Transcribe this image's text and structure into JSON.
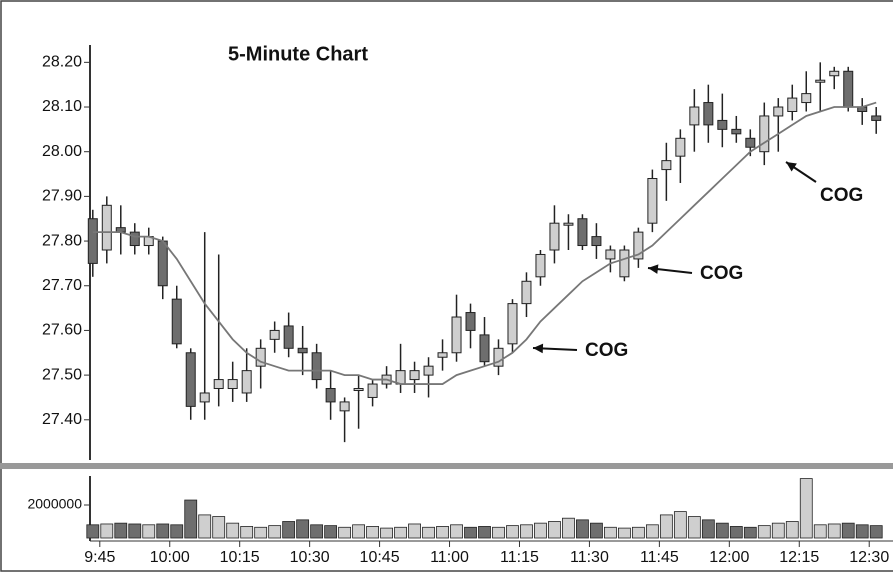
{
  "chart_data": [
    {
      "type": "candlestick",
      "title": "5-Minute Chart",
      "open": [
        27.85,
        27.78,
        27.83,
        27.82,
        27.79,
        27.8,
        27.67,
        27.55,
        27.44,
        27.47,
        27.47,
        27.46,
        27.52,
        27.58,
        27.61,
        27.56,
        27.55,
        27.47,
        27.42,
        27.47,
        27.45,
        27.48,
        27.48,
        27.49,
        27.5,
        27.54,
        27.55,
        27.64,
        27.59,
        27.52,
        27.57,
        27.66,
        27.72,
        27.78,
        27.84,
        27.85,
        27.81,
        27.76,
        27.72,
        27.76,
        27.84,
        27.96,
        27.99,
        28.06,
        28.11,
        28.07,
        28.05,
        28.03,
        28.0,
        28.08,
        28.09,
        28.11,
        28.16,
        28.17,
        28.18,
        28.1,
        28.08
      ],
      "high": [
        27.87,
        27.9,
        27.88,
        27.84,
        27.83,
        27.81,
        27.7,
        27.56,
        27.82,
        27.77,
        27.53,
        27.56,
        27.58,
        27.62,
        27.64,
        27.61,
        27.57,
        27.51,
        27.45,
        27.5,
        27.49,
        27.52,
        27.57,
        27.53,
        27.54,
        27.58,
        27.68,
        27.66,
        27.63,
        27.58,
        27.67,
        27.73,
        27.78,
        27.88,
        27.86,
        27.86,
        27.84,
        27.79,
        27.79,
        27.83,
        27.96,
        28.02,
        28.05,
        28.14,
        28.15,
        28.13,
        28.08,
        28.05,
        28.11,
        28.12,
        28.15,
        28.18,
        28.2,
        28.19,
        28.19,
        28.12,
        28.1
      ],
      "low": [
        27.72,
        27.75,
        27.77,
        27.77,
        27.77,
        27.67,
        27.56,
        27.4,
        27.4,
        27.43,
        27.44,
        27.44,
        27.47,
        27.55,
        27.54,
        27.5,
        27.47,
        27.4,
        27.35,
        27.38,
        27.43,
        27.47,
        27.46,
        27.46,
        27.45,
        27.51,
        27.53,
        27.56,
        27.52,
        27.5,
        27.55,
        27.63,
        27.7,
        27.75,
        27.78,
        27.78,
        27.76,
        27.73,
        27.71,
        27.74,
        27.82,
        27.89,
        27.93,
        28.0,
        28.02,
        28.01,
        28.02,
        27.99,
        27.97,
        28.0,
        28.07,
        28.09,
        28.09,
        28.14,
        28.09,
        28.06,
        28.04
      ],
      "close": [
        27.75,
        27.88,
        27.82,
        27.79,
        27.81,
        27.7,
        27.57,
        27.43,
        27.46,
        27.49,
        27.49,
        27.51,
        27.56,
        27.6,
        27.56,
        27.55,
        27.49,
        27.44,
        27.44,
        27.47,
        27.48,
        27.5,
        27.51,
        27.51,
        27.52,
        27.55,
        27.63,
        27.6,
        27.53,
        27.56,
        27.66,
        27.71,
        27.77,
        27.84,
        27.84,
        27.79,
        27.79,
        27.78,
        27.78,
        27.82,
        27.94,
        27.98,
        28.03,
        28.1,
        28.06,
        28.05,
        28.04,
        28.01,
        28.08,
        28.1,
        28.12,
        28.13,
        28.16,
        28.18,
        28.1,
        28.09,
        28.07
      ],
      "cog": [
        27.82,
        27.82,
        27.82,
        27.81,
        27.81,
        27.8,
        27.76,
        27.71,
        27.66,
        27.62,
        27.58,
        27.55,
        27.53,
        27.52,
        27.51,
        27.51,
        27.51,
        27.51,
        27.5,
        27.5,
        27.49,
        27.49,
        27.48,
        27.48,
        27.48,
        27.48,
        27.5,
        27.51,
        27.52,
        27.53,
        27.55,
        27.58,
        27.62,
        27.65,
        27.68,
        27.71,
        27.73,
        27.75,
        27.76,
        27.77,
        27.79,
        27.82,
        27.85,
        27.88,
        27.91,
        27.94,
        27.97,
        28.0,
        28.02,
        28.04,
        28.06,
        28.08,
        28.09,
        28.1,
        28.1,
        28.1,
        28.11
      ],
      "up_color": "#cfcfcf",
      "down_color": "#6e6e6e",
      "line_color": "#777777",
      "annotations": [
        "COG",
        "COG",
        "COG"
      ],
      "xlim": [
        -0.2,
        57.2
      ],
      "ylim": [
        27.31,
        28.25
      ],
      "yticks": [
        {
          "value": 27.4,
          "label": "27.40"
        },
        {
          "value": 27.5,
          "label": "27.50"
        },
        {
          "value": 27.6,
          "label": "27.60"
        },
        {
          "value": 27.7,
          "label": "27.70"
        },
        {
          "value": 27.8,
          "label": "27.80"
        },
        {
          "value": 27.9,
          "label": "27.90"
        },
        {
          "value": 28.0,
          "label": "28.00"
        },
        {
          "value": 28.1,
          "label": "28.10"
        },
        {
          "value": 28.2,
          "label": "28.20"
        }
      ]
    },
    {
      "type": "bar",
      "values": [
        800000,
        850000,
        900000,
        850000,
        800000,
        850000,
        800000,
        2300000,
        1400000,
        1300000,
        900000,
        700000,
        650000,
        750000,
        1000000,
        1100000,
        800000,
        750000,
        650000,
        800000,
        700000,
        600000,
        650000,
        850000,
        650000,
        700000,
        800000,
        650000,
        700000,
        650000,
        750000,
        800000,
        900000,
        1000000,
        1200000,
        1100000,
        900000,
        650000,
        600000,
        650000,
        800000,
        1400000,
        1600000,
        1300000,
        1100000,
        900000,
        700000,
        650000,
        750000,
        900000,
        1000000,
        3600000,
        800000,
        850000,
        900000,
        800000,
        750000
      ],
      "xlim": [
        -0.2,
        57.2
      ],
      "ylim": [
        0,
        4000000
      ],
      "yticks": [
        2000000
      ],
      "xticks": [
        {
          "value": 0.5,
          "label": "9:45"
        },
        {
          "value": 5.5,
          "label": "10:00"
        },
        {
          "value": 10.5,
          "label": "10:15"
        },
        {
          "value": 15.5,
          "label": "10:30"
        },
        {
          "value": 20.5,
          "label": "10:45"
        },
        {
          "value": 25.5,
          "label": "11:00"
        },
        {
          "value": 30.5,
          "label": "11:15"
        },
        {
          "value": 35.5,
          "label": "11:30"
        },
        {
          "value": 40.5,
          "label": "11:45"
        },
        {
          "value": 45.5,
          "label": "12:00"
        },
        {
          "value": 50.5,
          "label": "12:15"
        },
        {
          "value": 55.5,
          "label": "12:30"
        }
      ]
    }
  ]
}
